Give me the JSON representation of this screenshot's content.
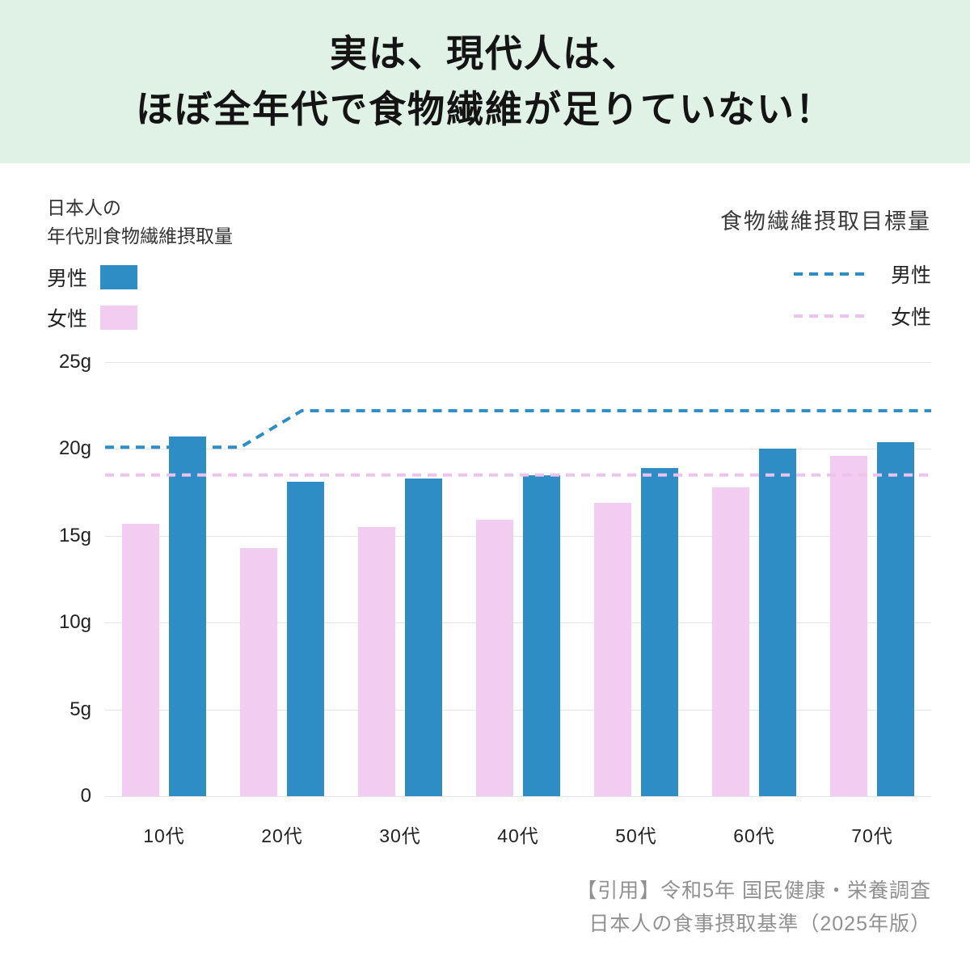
{
  "header": {
    "title_line1": "実は、現代人は、",
    "title_line2": "ほぼ全年代で食物繊維が足りていない！"
  },
  "legend_left": {
    "title_line1": "日本人の",
    "title_line2": "年代別食物繊維摂取量",
    "male_label": "男性",
    "female_label": "女性"
  },
  "legend_right": {
    "title": "食物繊維摂取目標量",
    "male_label": "男性",
    "female_label": "女性"
  },
  "footer": {
    "line1": "【引用】令和5年 国民健康・栄養調査",
    "line2": "日本人の食事摂取基準（2025年版）"
  },
  "colors": {
    "male": "#2e8dc5",
    "female": "#f2ccf1",
    "female_line": "#ecc3ec",
    "header_bg": "#dff2e5",
    "grid": "#e4e4e4",
    "footer_text": "#909090"
  },
  "chart_data": {
    "type": "bar",
    "title": "日本人の年代別食物繊維摂取量",
    "categories": [
      "10代",
      "20代",
      "30代",
      "40代",
      "50代",
      "60代",
      "70代"
    ],
    "series": [
      {
        "name": "女性",
        "color_key": "female",
        "values": [
          15.7,
          14.3,
          15.5,
          15.9,
          16.9,
          17.8,
          19.6
        ]
      },
      {
        "name": "男性",
        "color_key": "male",
        "values": [
          20.7,
          18.1,
          18.3,
          18.5,
          18.9,
          20.0,
          20.4
        ]
      }
    ],
    "target_lines": [
      {
        "name": "男性",
        "color_key": "male",
        "points": [
          [
            0,
            20.1
          ],
          [
            0.164,
            20.1
          ],
          [
            0.238,
            22.2
          ],
          [
            1,
            22.2
          ]
        ]
      },
      {
        "name": "女性",
        "color_key": "female_line",
        "points": [
          [
            0,
            18.5
          ],
          [
            1,
            18.5
          ]
        ]
      }
    ],
    "yticks": [
      {
        "value": 25,
        "label": "25g"
      },
      {
        "value": 20,
        "label": "20g"
      },
      {
        "value": 15,
        "label": "15g"
      },
      {
        "value": 10,
        "label": "10g"
      },
      {
        "value": 5,
        "label": "5g"
      },
      {
        "value": 0,
        "label": "0"
      }
    ],
    "ylim": [
      0,
      25
    ],
    "xlabel": "",
    "ylabel": "",
    "grid": true,
    "legend_position": "top",
    "unit": "g"
  }
}
